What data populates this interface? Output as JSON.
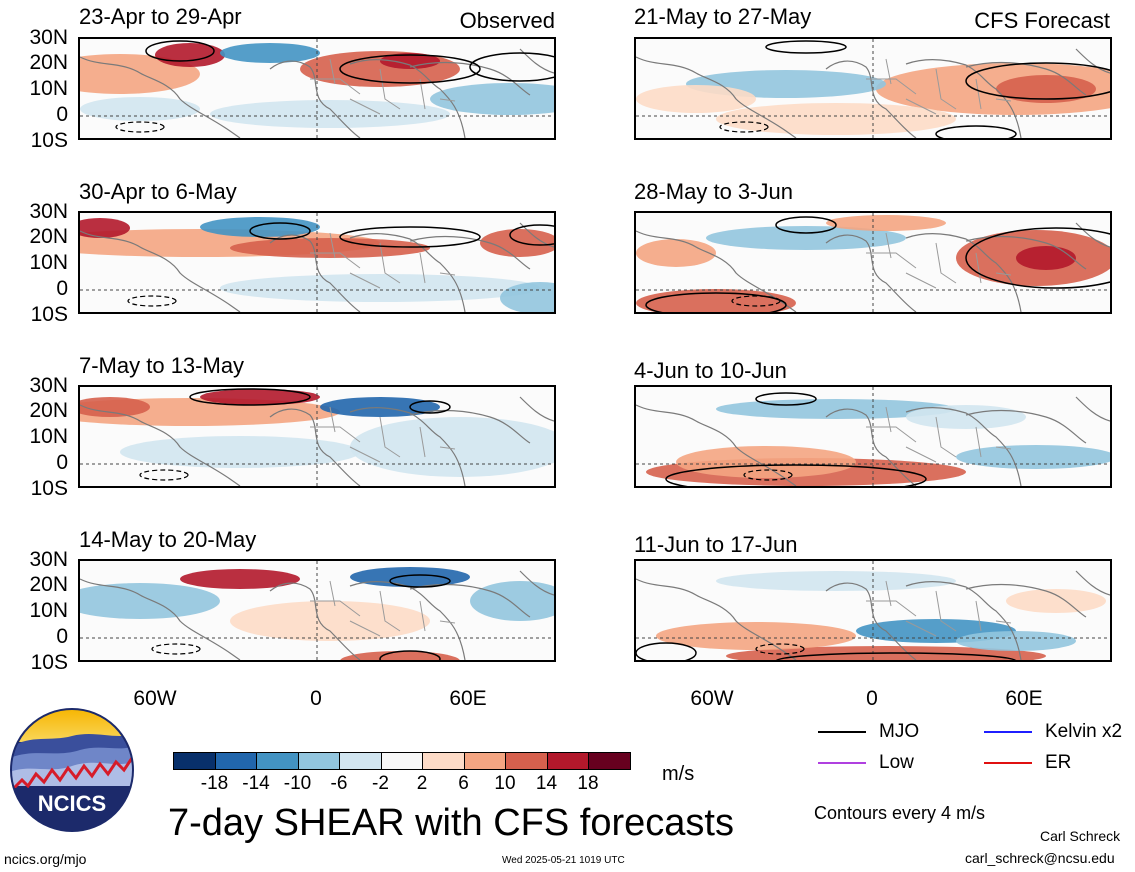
{
  "labels": {
    "observed": "Observed",
    "forecast": "CFS Forecast"
  },
  "panels": [
    {
      "title": "23-Apr to 29-Apr"
    },
    {
      "title": "30-Apr to 6-May"
    },
    {
      "title": "7-May to 13-May"
    },
    {
      "title": "14-May to 20-May"
    },
    {
      "title": "21-May to 27-May"
    },
    {
      "title": "28-May to 3-Jun"
    },
    {
      "title": "4-Jun to 10-Jun"
    },
    {
      "title": "11-Jun to 17-Jun"
    }
  ],
  "lat_ticks": [
    "30N",
    "20N",
    "10N",
    "0",
    "10S"
  ],
  "lon_ticks": [
    "60W",
    "0",
    "60E"
  ],
  "colorbar": {
    "units": "m/s",
    "ticks": [
      "-18",
      "-14",
      "-10",
      "-6",
      "-2",
      "2",
      "6",
      "10",
      "14",
      "18"
    ],
    "colors": [
      "#08306b",
      "#2166ac",
      "#4393c3",
      "#92c5de",
      "#d1e5f0",
      "#f7f7f7",
      "#fddbc7",
      "#f4a582",
      "#d6604d",
      "#b2182b",
      "#67001f"
    ]
  },
  "legend": {
    "items": [
      {
        "label": "MJO",
        "color": "#000000"
      },
      {
        "label": "Kelvin x2",
        "color": "#1f1fff"
      },
      {
        "label": "Low",
        "color": "#b040e0"
      },
      {
        "label": "ER",
        "color": "#e01010"
      }
    ],
    "contour_note": "Contours every 4 m/s"
  },
  "main_title": "7-day SHEAR with CFS forecasts",
  "logo_text": "NCICS",
  "footer": {
    "url": "ncics.org/mjo",
    "timestamp": "Wed 2025-05-21 1019 UTC",
    "author": "Carl Schreck",
    "email": "carl_schreck@ncsu.edu"
  }
}
